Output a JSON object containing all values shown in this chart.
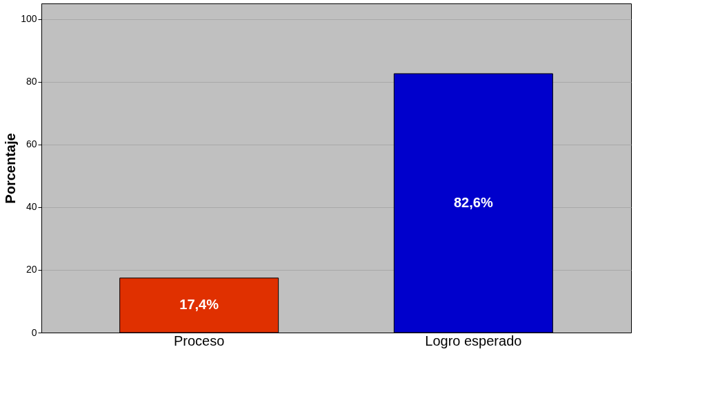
{
  "chart_data": {
    "type": "bar",
    "ylabel": "Porcentaje",
    "categories": [
      "Proceso",
      "Logro esperado"
    ],
    "values": [
      17.4,
      82.6
    ],
    "colors": [
      "#e03000",
      "#0000cc"
    ],
    "value_labels": [
      "17,4%",
      "82,6%"
    ],
    "ylim": [
      0,
      105
    ],
    "yticks": [
      0,
      20,
      40,
      60,
      80,
      100
    ],
    "grid": "y"
  }
}
